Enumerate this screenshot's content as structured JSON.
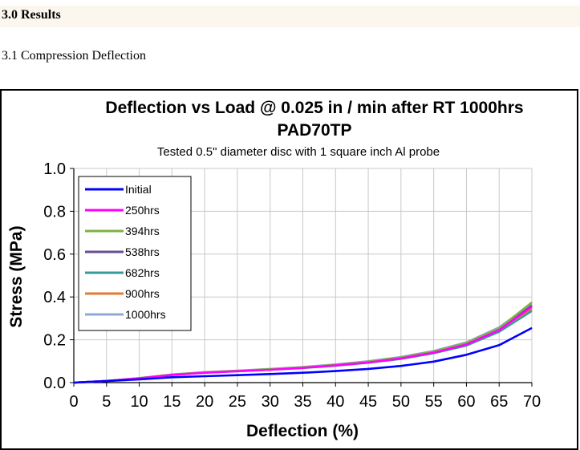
{
  "document": {
    "section_title": "3.0 Results",
    "subsection_title": "3.1 Compression Deflection"
  },
  "chart_data": {
    "type": "line",
    "title": "Deflection vs Load @  0.025 in / min after RT 1000hrs",
    "title_line2": "PAD70TP",
    "subtitle": "Tested 0.5\" diameter disc with 1 square inch Al probe",
    "xlabel": "Deflection  (%)",
    "ylabel": "Stress (MPa)",
    "xlim": [
      0,
      70
    ],
    "ylim": [
      0,
      1.0
    ],
    "xticks": [
      "0",
      "5",
      "10",
      "15",
      "20",
      "25",
      "30",
      "35",
      "40",
      "45",
      "50",
      "55",
      "60",
      "65",
      "70"
    ],
    "yticks": [
      "0.0",
      "0.2",
      "0.4",
      "0.6",
      "0.8",
      "1.0"
    ],
    "grid": true,
    "legend_position": "top-left",
    "x": [
      0,
      5,
      10,
      15,
      20,
      25,
      30,
      35,
      40,
      45,
      50,
      55,
      60,
      65,
      70
    ],
    "series": [
      {
        "name": "Initial",
        "color": "#0000ff",
        "values": [
          0,
          0.007,
          0.015,
          0.025,
          0.03,
          0.035,
          0.04,
          0.046,
          0.054,
          0.064,
          0.078,
          0.098,
          0.13,
          0.175,
          0.255
        ]
      },
      {
        "name": "250hrs",
        "color": "#ff00ff",
        "values": [
          0,
          0.008,
          0.02,
          0.036,
          0.046,
          0.053,
          0.06,
          0.069,
          0.08,
          0.094,
          0.113,
          0.14,
          0.178,
          0.245,
          0.355
        ]
      },
      {
        "name": "394hrs",
        "color": "#7cb342",
        "values": [
          0,
          0.008,
          0.021,
          0.038,
          0.048,
          0.055,
          0.063,
          0.072,
          0.083,
          0.098,
          0.118,
          0.145,
          0.185,
          0.253,
          0.375
        ]
      },
      {
        "name": "538hrs",
        "color": "#6a4c93",
        "values": [
          0,
          0.008,
          0.02,
          0.037,
          0.047,
          0.054,
          0.061,
          0.07,
          0.081,
          0.095,
          0.115,
          0.141,
          0.18,
          0.247,
          0.36
        ]
      },
      {
        "name": "682hrs",
        "color": "#3a9a9a",
        "values": [
          0,
          0.008,
          0.02,
          0.036,
          0.046,
          0.053,
          0.06,
          0.068,
          0.079,
          0.093,
          0.111,
          0.137,
          0.173,
          0.237,
          0.335
        ]
      },
      {
        "name": "900hrs",
        "color": "#e07b39",
        "values": [
          0,
          0.008,
          0.021,
          0.037,
          0.048,
          0.055,
          0.062,
          0.071,
          0.082,
          0.097,
          0.116,
          0.143,
          0.182,
          0.25,
          0.345
        ]
      },
      {
        "name": "1000hrs",
        "color": "#8fa8d8",
        "values": [
          0,
          0.008,
          0.021,
          0.038,
          0.049,
          0.056,
          0.064,
          0.073,
          0.085,
          0.1,
          0.12,
          0.148,
          0.188,
          0.258,
          0.368
        ]
      }
    ]
  }
}
